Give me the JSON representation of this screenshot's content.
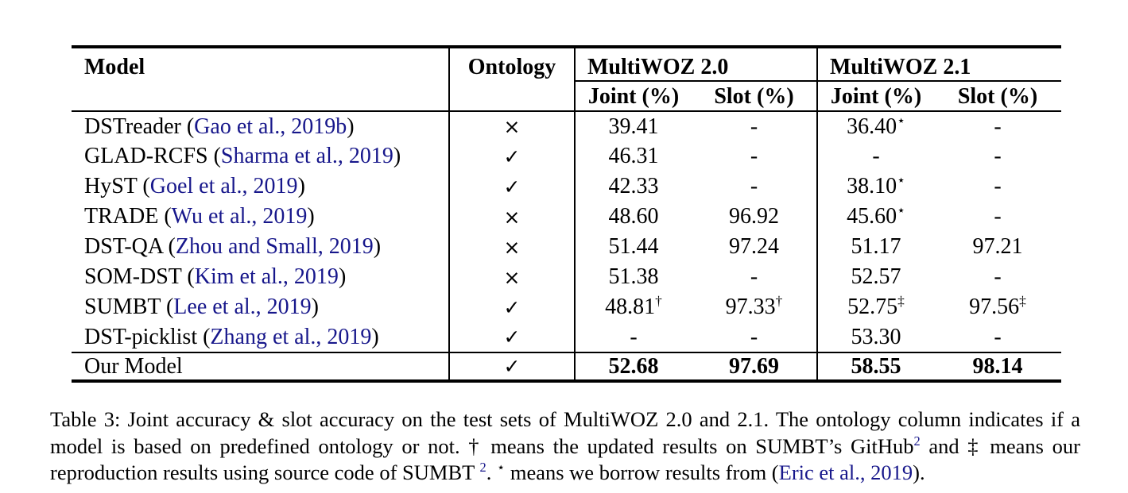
{
  "colors": {
    "link": "#17178b",
    "text": "#000000",
    "background": "#ffffff"
  },
  "table": {
    "title": "Table 3",
    "header": {
      "model": "Model",
      "ontology": "Ontology",
      "group1": "MultiWOZ 2.0",
      "group2": "MultiWOZ 2.1",
      "sub1": "Joint (%)",
      "sub2": "Slot (%)",
      "sub3": "Joint (%)",
      "sub4": "Slot (%)"
    },
    "ontology_symbols": {
      "yes": "✓",
      "no": "×"
    },
    "rows": [
      {
        "name": "DSTreader",
        "citation": "Gao et al., 2019b",
        "ontology": "no",
        "bold": false,
        "separator_above": false,
        "values": [
          {
            "v": "39.41"
          },
          {
            "v": "-"
          },
          {
            "v": "36.40",
            "sup": "⋆"
          },
          {
            "v": "-"
          }
        ]
      },
      {
        "name": "GLAD-RCFS",
        "citation": "Sharma et al., 2019",
        "ontology": "yes",
        "bold": false,
        "separator_above": false,
        "values": [
          {
            "v": "46.31"
          },
          {
            "v": "-"
          },
          {
            "v": "-"
          },
          {
            "v": "-"
          }
        ]
      },
      {
        "name": "HyST",
        "citation": "Goel et al., 2019",
        "ontology": "yes",
        "bold": false,
        "separator_above": false,
        "values": [
          {
            "v": "42.33"
          },
          {
            "v": "-"
          },
          {
            "v": "38.10",
            "sup": "⋆"
          },
          {
            "v": "-"
          }
        ]
      },
      {
        "name": "TRADE",
        "citation": "Wu et al., 2019",
        "ontology": "no",
        "bold": false,
        "separator_above": false,
        "values": [
          {
            "v": "48.60"
          },
          {
            "v": "96.92"
          },
          {
            "v": "45.60",
            "sup": "⋆"
          },
          {
            "v": "-"
          }
        ]
      },
      {
        "name": "DST-QA",
        "citation": "Zhou and Small, 2019",
        "ontology": "no",
        "bold": false,
        "separator_above": false,
        "values": [
          {
            "v": "51.44"
          },
          {
            "v": "97.24"
          },
          {
            "v": "51.17"
          },
          {
            "v": "97.21"
          }
        ]
      },
      {
        "name": "SOM-DST",
        "citation": "Kim et al., 2019",
        "ontology": "no",
        "bold": false,
        "separator_above": false,
        "values": [
          {
            "v": "51.38"
          },
          {
            "v": "-"
          },
          {
            "v": "52.57"
          },
          {
            "v": "-"
          }
        ]
      },
      {
        "name": "SUMBT",
        "citation": "Lee et al., 2019",
        "ontology": "yes",
        "bold": false,
        "separator_above": false,
        "values": [
          {
            "v": "48.81",
            "sup": "†"
          },
          {
            "v": "97.33",
            "sup": "†"
          },
          {
            "v": "52.75",
            "sup": "‡"
          },
          {
            "v": "97.56",
            "sup": "‡"
          }
        ]
      },
      {
        "name": "DST-picklist",
        "citation": "Zhang et al., 2019",
        "ontology": "yes",
        "bold": false,
        "separator_above": false,
        "values": [
          {
            "v": "-"
          },
          {
            "v": "-"
          },
          {
            "v": "53.30"
          },
          {
            "v": "-"
          }
        ]
      },
      {
        "name": "Our Model",
        "citation": null,
        "ontology": "yes",
        "bold": true,
        "separator_above": true,
        "values": [
          {
            "v": "52.68"
          },
          {
            "v": "97.69"
          },
          {
            "v": "58.55"
          },
          {
            "v": "98.14"
          }
        ]
      }
    ]
  },
  "caption": {
    "segments": [
      {
        "type": "text",
        "text": "Table 3: Joint accuracy & slot accuracy on the test sets of MultiWOZ 2.0 and 2.1. The ontology column indicates if a model is based on predefined ontology or not. † means the updated results on SUMBT’s GitHub"
      },
      {
        "type": "footnote-link",
        "text": "2"
      },
      {
        "type": "text",
        "text": " and ‡ means our reproduction results using source code of SUMBT "
      },
      {
        "type": "footnote-link",
        "text": "2"
      },
      {
        "type": "text",
        "text": ". "
      },
      {
        "type": "sup",
        "text": "⋆"
      },
      {
        "type": "text",
        "text": " means we borrow results from ("
      },
      {
        "type": "citation-link",
        "text": "Eric et al., 2019"
      },
      {
        "type": "text",
        "text": ")."
      }
    ]
  }
}
